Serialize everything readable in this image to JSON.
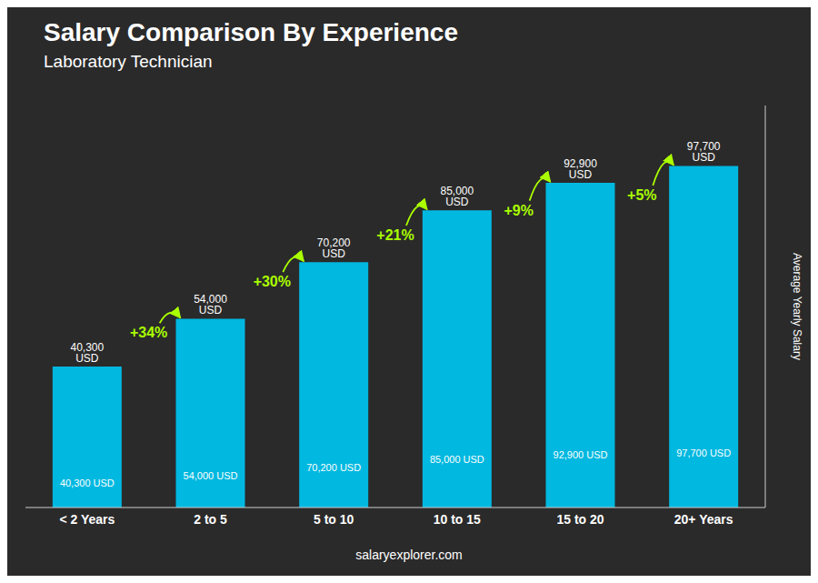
{
  "chart_data": {
    "type": "bar",
    "title": "Salary Comparison By Experience",
    "subtitle": "Laboratory Technician",
    "categories": [
      "< 2 Years",
      "2 to 5",
      "5 to 10",
      "10 to 15",
      "15 to 20",
      "20+ Years"
    ],
    "values": [
      40300,
      54000,
      70200,
      85000,
      92900,
      97700
    ],
    "value_labels": [
      "40,300 USD",
      "54,000 USD",
      "70,200 USD",
      "85,000 USD",
      "92,900 USD",
      "97,700 USD"
    ],
    "data_labels": true,
    "color": "#00b8e0",
    "ylim": [
      0,
      115000
    ],
    "ylabel": "Average Yearly Salary",
    "tick_labels": "x",
    "grid": false,
    "annotations": [
      {
        "text": "+34%",
        "color": "#aaff00"
      },
      {
        "text": "+30%",
        "color": "#aaff00"
      },
      {
        "text": "+21%",
        "color": "#aaff00"
      },
      {
        "text": "+9%",
        "color": "#aaff00"
      },
      {
        "text": "+5%",
        "color": "#aaff00"
      }
    ],
    "footer": "salaryexplorer.com"
  }
}
